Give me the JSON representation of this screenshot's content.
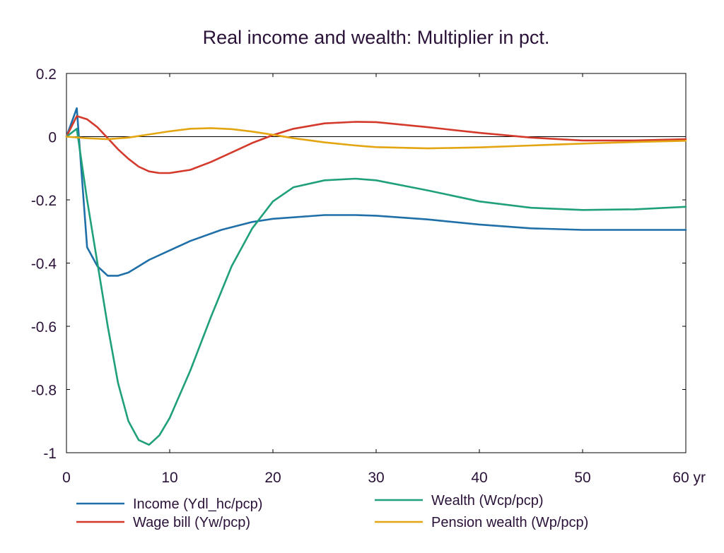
{
  "chart_data": {
    "type": "line",
    "title": "Real income and wealth: Multiplier in pct.",
    "xlabel": "",
    "ylabel": "",
    "xlim": [
      0,
      60
    ],
    "ylim": [
      -1,
      0.2
    ],
    "x_ticks": [
      0,
      10,
      20,
      30,
      40,
      50,
      60
    ],
    "x_tick_labels": [
      "0",
      "10",
      "20",
      "30",
      "40",
      "50",
      "60 yr"
    ],
    "y_ticks": [
      0.2,
      0,
      -0.2,
      -0.4,
      -0.6,
      -0.8,
      -1
    ],
    "y_tick_labels": [
      "0.2",
      "0",
      "-0.2",
      "-0.4",
      "-0.6",
      "-0.8",
      "-1"
    ],
    "zero_line": true,
    "grid": false,
    "legend_position": "bottom",
    "series": [
      {
        "name": "Income (Ydl_hc/pcp)",
        "color": "#1f6fa8",
        "points": [
          [
            0,
            0
          ],
          [
            1,
            0.09
          ],
          [
            2,
            -0.35
          ],
          [
            3,
            -0.41
          ],
          [
            4,
            -0.44
          ],
          [
            5,
            -0.44
          ],
          [
            6,
            -0.43
          ],
          [
            7,
            -0.41
          ],
          [
            8,
            -0.39
          ],
          [
            10,
            -0.36
          ],
          [
            12,
            -0.33
          ],
          [
            15,
            -0.295
          ],
          [
            18,
            -0.27
          ],
          [
            20,
            -0.26
          ],
          [
            25,
            -0.248
          ],
          [
            28,
            -0.248
          ],
          [
            30,
            -0.25
          ],
          [
            35,
            -0.262
          ],
          [
            40,
            -0.278
          ],
          [
            45,
            -0.29
          ],
          [
            50,
            -0.295
          ],
          [
            55,
            -0.295
          ],
          [
            60,
            -0.295
          ]
        ]
      },
      {
        "name": "Wage bill (Yw/pcp)",
        "color": "#d43a2b",
        "points": [
          [
            0,
            0
          ],
          [
            1,
            0.065
          ],
          [
            2,
            0.055
          ],
          [
            3,
            0.03
          ],
          [
            4,
            -0.005
          ],
          [
            5,
            -0.04
          ],
          [
            6,
            -0.07
          ],
          [
            7,
            -0.095
          ],
          [
            8,
            -0.11
          ],
          [
            9,
            -0.115
          ],
          [
            10,
            -0.115
          ],
          [
            12,
            -0.105
          ],
          [
            14,
            -0.08
          ],
          [
            16,
            -0.05
          ],
          [
            18,
            -0.02
          ],
          [
            20,
            0.005
          ],
          [
            22,
            0.025
          ],
          [
            25,
            0.042
          ],
          [
            28,
            0.047
          ],
          [
            30,
            0.046
          ],
          [
            35,
            0.03
          ],
          [
            40,
            0.012
          ],
          [
            45,
            -0.003
          ],
          [
            50,
            -0.012
          ],
          [
            55,
            -0.012
          ],
          [
            60,
            -0.008
          ]
        ]
      },
      {
        "name": "Wealth (Wcp/pcp)",
        "color": "#1fa07a",
        "points": [
          [
            0,
            0
          ],
          [
            1,
            0.025
          ],
          [
            2,
            -0.2
          ],
          [
            3,
            -0.4
          ],
          [
            4,
            -0.6
          ],
          [
            5,
            -0.78
          ],
          [
            6,
            -0.9
          ],
          [
            7,
            -0.96
          ],
          [
            8,
            -0.975
          ],
          [
            9,
            -0.945
          ],
          [
            10,
            -0.89
          ],
          [
            12,
            -0.74
          ],
          [
            14,
            -0.57
          ],
          [
            16,
            -0.41
          ],
          [
            18,
            -0.29
          ],
          [
            20,
            -0.205
          ],
          [
            22,
            -0.16
          ],
          [
            25,
            -0.138
          ],
          [
            28,
            -0.133
          ],
          [
            30,
            -0.138
          ],
          [
            35,
            -0.17
          ],
          [
            40,
            -0.205
          ],
          [
            45,
            -0.225
          ],
          [
            50,
            -0.232
          ],
          [
            55,
            -0.23
          ],
          [
            60,
            -0.222
          ]
        ]
      },
      {
        "name": "Pension wealth (Wp/pcp)",
        "color": "#e3a512",
        "points": [
          [
            0,
            0
          ],
          [
            2,
            -0.005
          ],
          [
            4,
            -0.008
          ],
          [
            6,
            -0.003
          ],
          [
            8,
            0.007
          ],
          [
            10,
            0.017
          ],
          [
            12,
            0.025
          ],
          [
            14,
            0.027
          ],
          [
            16,
            0.024
          ],
          [
            18,
            0.016
          ],
          [
            20,
            0.006
          ],
          [
            22,
            -0.005
          ],
          [
            25,
            -0.018
          ],
          [
            28,
            -0.028
          ],
          [
            30,
            -0.033
          ],
          [
            35,
            -0.037
          ],
          [
            40,
            -0.034
          ],
          [
            45,
            -0.028
          ],
          [
            50,
            -0.022
          ],
          [
            55,
            -0.017
          ],
          [
            60,
            -0.013
          ]
        ]
      }
    ]
  }
}
